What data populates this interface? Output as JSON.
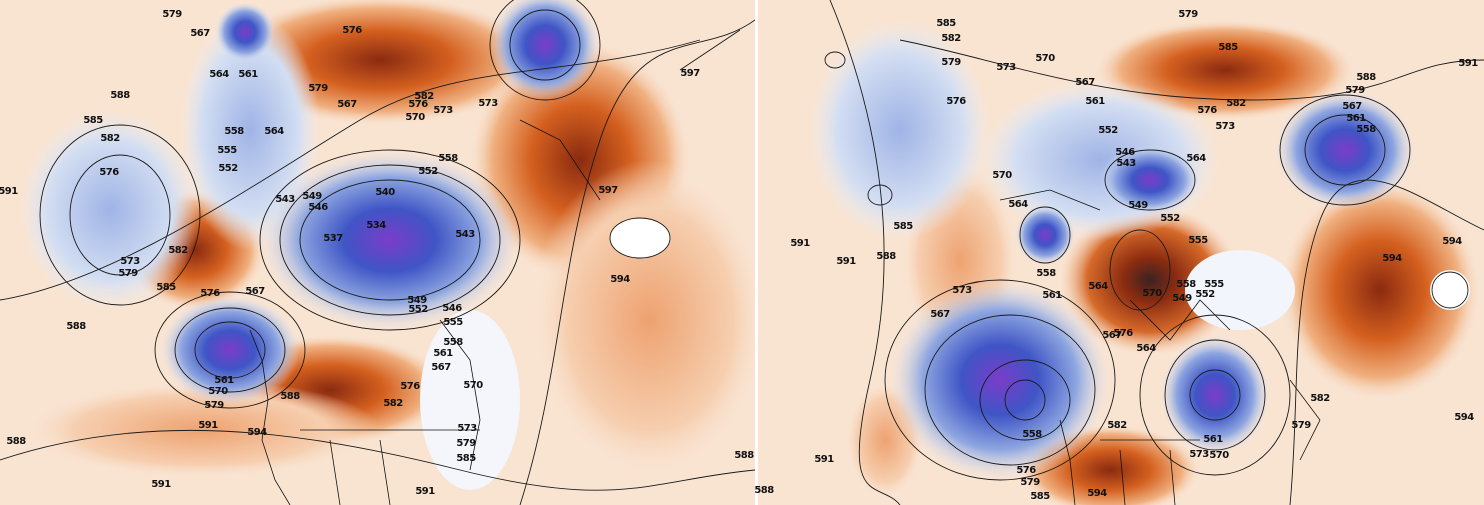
{
  "maps": [
    {
      "labels": [
        "579",
        "567",
        "576",
        "564",
        "561",
        "588",
        "579",
        "567",
        "582",
        "576",
        "570",
        "573",
        "573",
        "597",
        "585",
        "582",
        "558",
        "564",
        "555",
        "552",
        "558",
        "552",
        "576",
        "591",
        "597",
        "543",
        "549",
        "546",
        "540",
        "543",
        "537",
        "534",
        "573",
        "579",
        "582",
        "585",
        "576",
        "567",
        "594",
        "588",
        "549",
        "552",
        "546",
        "555",
        "558",
        "561",
        "567",
        "561",
        "570",
        "579",
        "576",
        "582",
        "588",
        "570",
        "591",
        "594",
        "573",
        "579",
        "585",
        "588",
        "588",
        "591",
        "591"
      ]
    },
    {
      "labels": [
        "585",
        "582",
        "579",
        "579",
        "573",
        "570",
        "567",
        "576",
        "585",
        "591",
        "561",
        "582",
        "576",
        "579",
        "588",
        "567",
        "561",
        "558",
        "552",
        "573",
        "546",
        "543",
        "564",
        "570",
        "564",
        "549",
        "552",
        "555",
        "585",
        "591",
        "591",
        "588",
        "594",
        "594",
        "558",
        "561",
        "564",
        "570",
        "558",
        "555",
        "549",
        "552",
        "573",
        "567",
        "567",
        "576",
        "564",
        "582",
        "579",
        "594",
        "558",
        "582",
        "561",
        "573",
        "570",
        "576",
        "579",
        "585",
        "594",
        "591",
        "588"
      ]
    }
  ]
}
